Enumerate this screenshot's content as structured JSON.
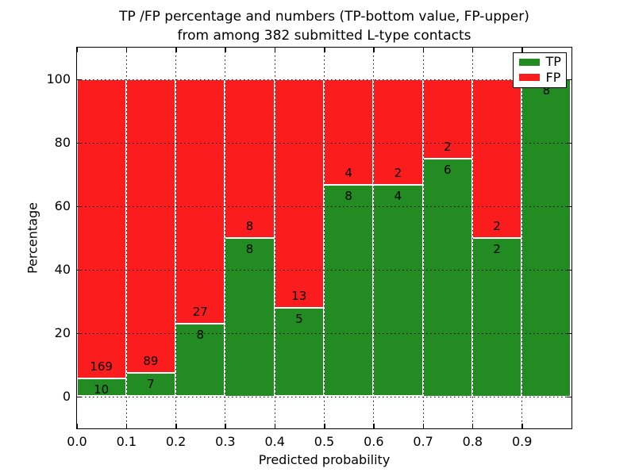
{
  "title": {
    "line1": "TP /FP percentage and numbers (TP-bottom value, FP-upper)",
    "line2": "from among 382 submitted L-type contacts"
  },
  "axes": {
    "xlabel": "Predicted probability",
    "ylabel": "Percentage",
    "x_tick_labels": [
      "0.0",
      "0.1",
      "0.2",
      "0.3",
      "0.4",
      "0.5",
      "0.6",
      "0.7",
      "0.8",
      "0.9"
    ],
    "y_tick_labels": [
      "0",
      "20",
      "40",
      "60",
      "80",
      "100"
    ],
    "y_tick_values": [
      0,
      20,
      40,
      60,
      80,
      100
    ]
  },
  "legend": {
    "position": "upper right",
    "items": [
      {
        "label": "TP",
        "color": "#228b22"
      },
      {
        "label": "FP",
        "color": "#fb1d1d"
      }
    ]
  },
  "colors": {
    "tp_green": "#228b22",
    "fp_red": "#fb1d1d",
    "grid": "#000000",
    "background": "#ffffff"
  },
  "chart_data": {
    "type": "bar",
    "stacked": true,
    "normalized_to_percent": true,
    "title": "TP /FP percentage and numbers (TP-bottom value, FP-upper) from among 382 submitted L-type contacts",
    "xlabel": "Predicted probability",
    "ylabel": "Percentage",
    "xlim": [
      0.0,
      1.0
    ],
    "ylim": [
      -10,
      110
    ],
    "bin_width": 0.1,
    "grid": "dotted",
    "legend_position": "upper right",
    "total_contacts": 382,
    "categories": [
      "0.0-0.1",
      "0.1-0.2",
      "0.2-0.3",
      "0.3-0.4",
      "0.4-0.5",
      "0.5-0.6",
      "0.6-0.7",
      "0.7-0.8",
      "0.8-0.9",
      "0.9-1.0"
    ],
    "series": [
      {
        "name": "TP",
        "color": "#228b22",
        "values": [
          10,
          7,
          8,
          8,
          5,
          8,
          4,
          6,
          2,
          8
        ]
      },
      {
        "name": "FP",
        "color": "#fb1d1d",
        "values": [
          169,
          89,
          27,
          8,
          13,
          4,
          2,
          2,
          2,
          0
        ]
      }
    ],
    "tp_percent": [
      5.6,
      7.3,
      22.9,
      50.0,
      27.8,
      66.7,
      66.7,
      75.0,
      50.0,
      100.0
    ]
  }
}
